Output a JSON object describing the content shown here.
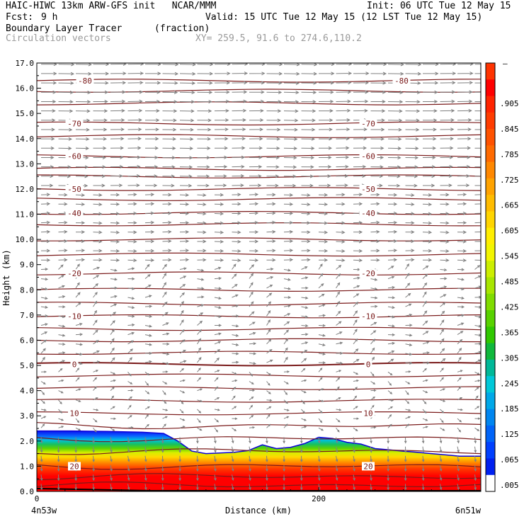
{
  "header": {
    "title_left": "HAIC-HIWC 13km ARW-GFS init   NCAR/MMM",
    "init": "Init: 06 UTC Tue 12 May 15",
    "fcst_label": "Fcst:",
    "fcst_value": "9 h",
    "valid": "Valid: 15 UTC Tue 12 May 15 (12 LST Tue 12 May 15)",
    "field_name": "Boundary Layer Tracer",
    "field_units": "(fraction)",
    "overlay_name": "Circulation vectors",
    "xy_range": "XY= 259.5, 91.6 to 274.6,110.2"
  },
  "chart_data": {
    "type": "heatmap",
    "ylabel": "Height (km)",
    "xlabel": "Distance (km)",
    "xlim": [
      0,
      315
    ],
    "ylim": [
      0,
      17
    ],
    "yticks": [
      "0.0",
      "1.0",
      "2.0",
      "3.0",
      "4.0",
      "5.0",
      "6.0",
      "7.0",
      "8.0",
      "9.0",
      "10.0",
      "11.0",
      "12.0",
      "13.0",
      "14.0",
      "15.0",
      "16.0",
      "17.0"
    ],
    "xticks": [
      {
        "value": 0,
        "label": "0"
      },
      {
        "value": 200,
        "label": "200"
      }
    ],
    "x_end_labels": {
      "left": "4n53w",
      "right": "6n51w"
    },
    "colorbar": {
      "top_label": "–",
      "labels": [
        ".905",
        ".845",
        ".785",
        ".725",
        ".665",
        ".605",
        ".545",
        ".485",
        ".425",
        ".365",
        ".305",
        ".245",
        ".185",
        ".125",
        ".065",
        ".005"
      ],
      "colors": [
        "#ff3300",
        "#ff0000",
        "#ff2400",
        "#ff3c00",
        "#ff5200",
        "#ff6a00",
        "#ff8800",
        "#ffa300",
        "#ffbc00",
        "#ffd500",
        "#ffee00",
        "#f2f500",
        "#ccee00",
        "#a8e600",
        "#80dc00",
        "#58d200",
        "#30c800",
        "#10b83c",
        "#00b898",
        "#00c8d8",
        "#00a8e8",
        "#0086f0",
        "#0064f8",
        "#0040ff",
        "#0020f0",
        "#ffffff"
      ]
    },
    "bl_top_km": [
      [
        0,
        2.4
      ],
      [
        25,
        2.4
      ],
      [
        50,
        2.38
      ],
      [
        75,
        2.35
      ],
      [
        90,
        2.3
      ],
      [
        100,
        2.0
      ],
      [
        110,
        1.6
      ],
      [
        120,
        1.5
      ],
      [
        140,
        1.55
      ],
      [
        150,
        1.62
      ],
      [
        160,
        1.85
      ],
      [
        170,
        1.7
      ],
      [
        180,
        1.75
      ],
      [
        190,
        1.9
      ],
      [
        200,
        2.15
      ],
      [
        210,
        2.1
      ],
      [
        220,
        1.95
      ],
      [
        230,
        1.88
      ],
      [
        240,
        1.7
      ],
      [
        250,
        1.65
      ],
      [
        260,
        1.6
      ],
      [
        270,
        1.55
      ],
      [
        280,
        1.5
      ],
      [
        290,
        1.45
      ],
      [
        300,
        1.4
      ],
      [
        315,
        1.4
      ]
    ],
    "isotherms": [
      {
        "label": "-80",
        "height_km": 16.3
      },
      {
        "label": "-70",
        "height_km": 14.6
      },
      {
        "label": "-60",
        "height_km": 13.3
      },
      {
        "label": "-50",
        "height_km": 12.0
      },
      {
        "label": "-40",
        "height_km": 11.05
      },
      {
        "label": "-20",
        "height_km": 8.65
      },
      {
        "label": "-10",
        "height_km": 6.95
      },
      {
        "label": "0",
        "height_km": 5.05
      },
      {
        "label": "10",
        "height_km": 3.1
      },
      {
        "label": "20",
        "height_km": 1.0
      }
    ],
    "unlabeled_isotherm_heights_km": [
      15.9,
      15.4,
      14.1,
      12.8,
      12.5,
      11.6,
      10.6,
      10.0,
      9.4,
      8.0,
      7.45,
      6.45,
      6.0,
      5.5,
      4.6,
      4.1,
      3.6,
      2.6,
      2.1,
      1.6,
      0.6,
      0.25
    ]
  }
}
